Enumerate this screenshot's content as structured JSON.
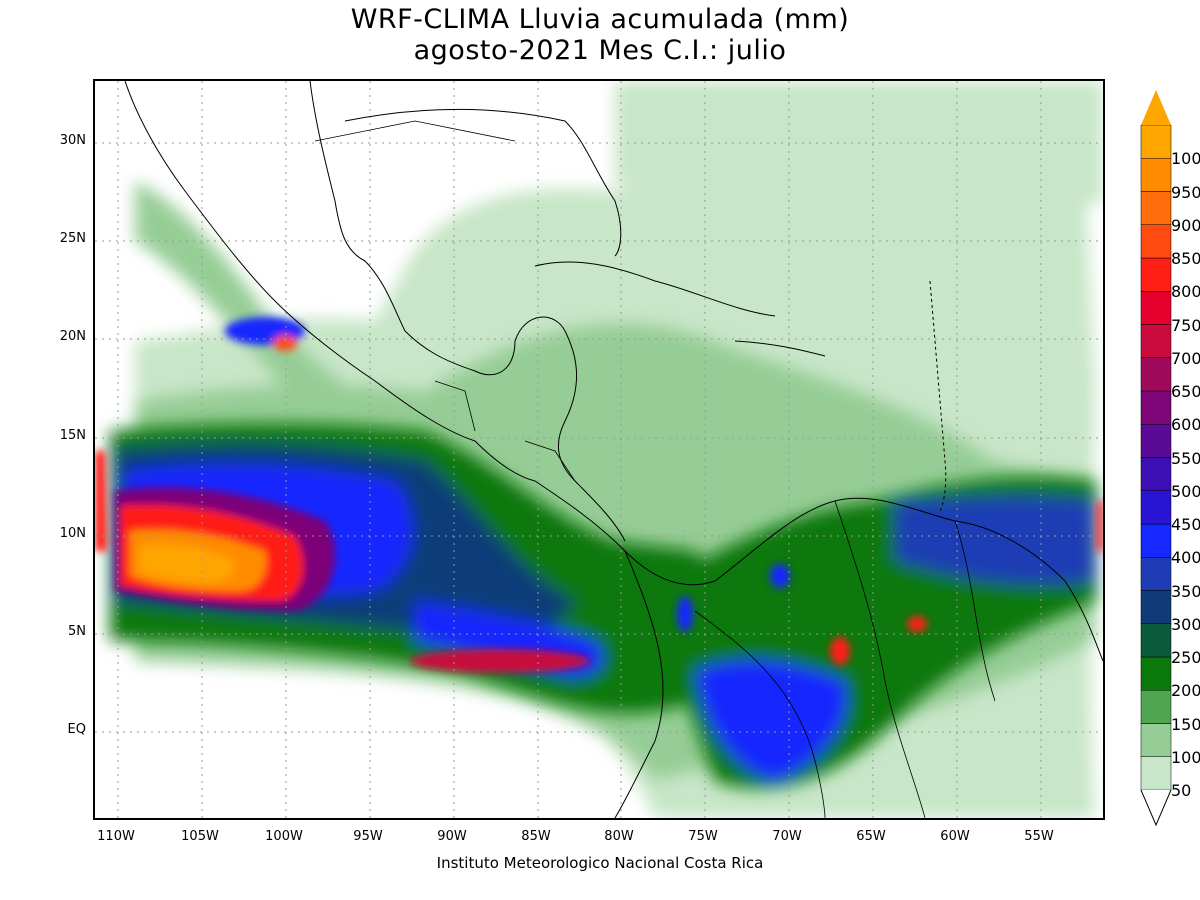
{
  "title": {
    "line1": "WRF-CLIMA Lluvia acumulada (mm)",
    "line2": "agosto-2021 Mes C.I.: julio"
  },
  "credit": "Instituto Meteorologico Nacional Costa Rica",
  "map": {
    "region": "Central America, Caribbean and northern South America",
    "grid": "dotted",
    "lon_range": [
      -111,
      -51
    ],
    "lat_range": [
      -4,
      33
    ],
    "x_ticks": [
      "110W",
      "105W",
      "100W",
      "95W",
      "90W",
      "85W",
      "80W",
      "75W",
      "70W",
      "65W",
      "60W",
      "55W"
    ],
    "y_ticks": [
      "30N",
      "25N",
      "20N",
      "15N",
      "10N",
      "5N",
      "EQ"
    ]
  },
  "colorbar": {
    "labels": [
      "50",
      "100",
      "150",
      "200",
      "250",
      "300",
      "350",
      "400",
      "450",
      "500",
      "550",
      "600",
      "650",
      "700",
      "750",
      "800",
      "850",
      "900",
      "950",
      "1000"
    ],
    "colors": [
      "#c8e6c8",
      "#96cd96",
      "#50a550",
      "#0a780a",
      "#0a5a3c",
      "#0f3c78",
      "#1e3cb4",
      "#1428ff",
      "#2814d2",
      "#3c0fb4",
      "#5a0a96",
      "#7d0578",
      "#a00a5a",
      "#c80a3c",
      "#e6002d",
      "#ff1e14",
      "#ff4b0f",
      "#ff6e0a",
      "#ff8c00",
      "#ffa500"
    ]
  }
}
